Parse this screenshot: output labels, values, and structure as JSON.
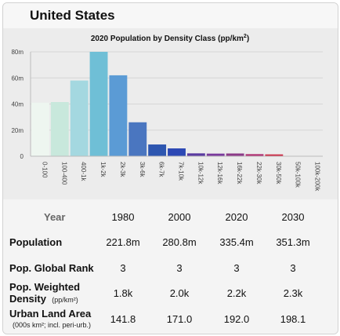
{
  "header": {
    "title": "United States"
  },
  "chart_data": {
    "type": "bar",
    "title": "2020 Population by Density Class (pp/km²)",
    "title_main": "2020 Population by Density Class (pp/km",
    "title_sup": "2",
    "title_end": ")",
    "categories": [
      "0-100",
      "100-400",
      "400-1k",
      "1k-2k",
      "2k-3k",
      "3k-6k",
      "6k-7k",
      "7k-10k",
      "10k-12k",
      "12k-16k",
      "16k-22k",
      "22k-30k",
      "30k-50k",
      "50k-100k",
      "100k-200k"
    ],
    "values": [
      41,
      41.5,
      58,
      80,
      62,
      26,
      9,
      6,
      2.2,
      2,
      2.1,
      1.6,
      1.4,
      0.15,
      0.1
    ],
    "colors": [
      "#eef6f0",
      "#c8e8dc",
      "#a4d8e0",
      "#6fbfd6",
      "#5b9bd5",
      "#4a76c0",
      "#2d56b0",
      "#2c48b4",
      "#5a3aa0",
      "#7a3a9c",
      "#8c3a88",
      "#b02e70",
      "#cc2a44",
      "#d24050",
      "#d8a0a8"
    ],
    "ylim": [
      0,
      80
    ],
    "yticks": [
      "0",
      "20m",
      "40m",
      "60m",
      "80m"
    ],
    "ytick_values": [
      0,
      20,
      40,
      60,
      80
    ],
    "grid": true,
    "legend": "none"
  },
  "stats": {
    "year_header": "Year",
    "years": [
      "1980",
      "2000",
      "2020",
      "2030"
    ],
    "rows": [
      {
        "label": "Population",
        "values": [
          "221.8m",
          "280.8m",
          "335.4m",
          "351.3m"
        ]
      },
      {
        "label": "Pop. Global Rank",
        "values": [
          "3",
          "3",
          "3",
          "3"
        ]
      },
      {
        "label": "Pop. Weighted",
        "label2": "Density",
        "sub": "(pp/km²)",
        "values": [
          "1.8k",
          "2.0k",
          "2.2k",
          "2.3k"
        ]
      },
      {
        "label": "Urban Land Area",
        "sub": "(000s km²; incl. peri-urb.)",
        "values": [
          "141.8",
          "171.0",
          "192.0",
          "198.1"
        ]
      }
    ]
  }
}
